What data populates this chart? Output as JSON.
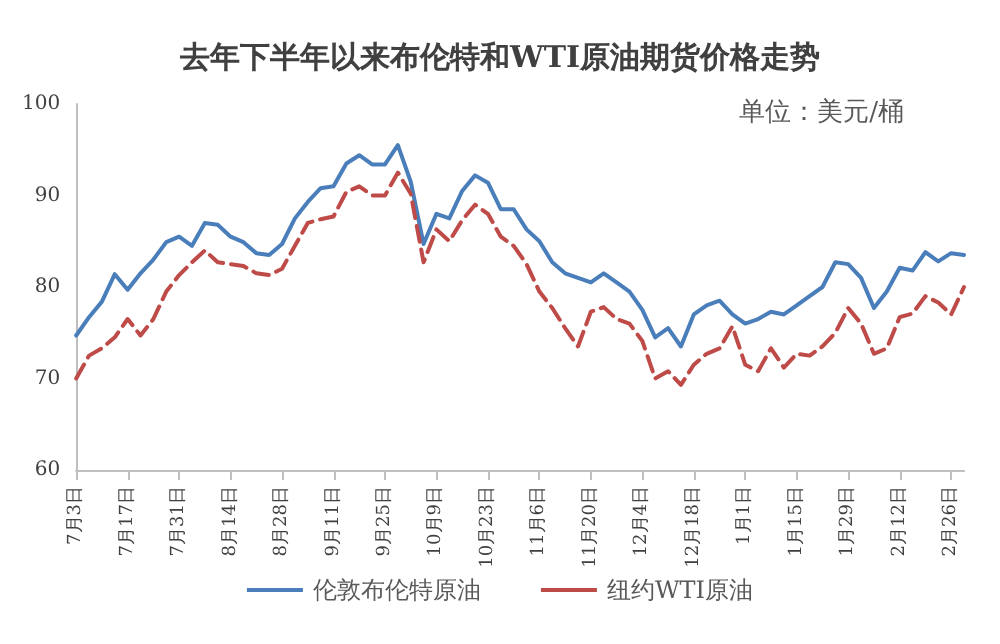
{
  "chart_data": {
    "type": "line",
    "title": "去年下半年以来布伦特和WTI原油期货价格走势",
    "annotations": [
      "单位：美元/桶"
    ],
    "categories": [
      "7月3日",
      null,
      null,
      null,
      "7月17日",
      null,
      null,
      null,
      "7月31日",
      null,
      null,
      null,
      "8月14日",
      null,
      null,
      null,
      "8月28日",
      null,
      null,
      null,
      "9月11日",
      null,
      null,
      null,
      "9月25日",
      null,
      null,
      null,
      "10月9日",
      null,
      null,
      null,
      "10月23日",
      null,
      null,
      null,
      "11月6日",
      null,
      null,
      null,
      "11月20日",
      null,
      null,
      null,
      "12月4日",
      null,
      null,
      null,
      "12月18日",
      null,
      null,
      null,
      "1月1日",
      null,
      null,
      null,
      "1月15日",
      null,
      null,
      null,
      "1月29日",
      null,
      null,
      null,
      "2月12日",
      null,
      null,
      null,
      "2月26日",
      null
    ],
    "series": [
      {
        "name": "伦敦布伦特原油",
        "color": "#4a7ebb",
        "line_style": "solid",
        "values": [
          74.7,
          76.7,
          78.4,
          81.4,
          79.7,
          81.5,
          83,
          84.9,
          85.5,
          84.5,
          87,
          86.8,
          85.5,
          84.9,
          83.7,
          83.5,
          84.7,
          87.5,
          89.3,
          90.8,
          91,
          93.5,
          94.4,
          93.4,
          93.4,
          95.5,
          91.5,
          84.7,
          88,
          87.5,
          90.5,
          92.2,
          91.4,
          88.5,
          88.5,
          86.3,
          85,
          82.7,
          81.5,
          81,
          80.5,
          81.5,
          80.5,
          79.5,
          77.5,
          74.5,
          75.5,
          73.5,
          77,
          78,
          78.5,
          77,
          76,
          76.5,
          77.3,
          77,
          78,
          79,
          80,
          82.7,
          82.5,
          81,
          77.7,
          79.5,
          82.1,
          81.8,
          83.8,
          82.8,
          83.7,
          83.5
        ]
      },
      {
        "name": "纽约WTI原油",
        "color": "#be4b48",
        "line_style": "dashed",
        "values": [
          70,
          72.5,
          73.3,
          74.5,
          76.5,
          74.7,
          76.5,
          79.5,
          81.3,
          82.7,
          84,
          82.7,
          82.5,
          82.3,
          81.5,
          81.3,
          82,
          84.5,
          87,
          87.4,
          87.7,
          90.4,
          91,
          90,
          90,
          92.5,
          90.2,
          82.7,
          86.3,
          85,
          87.3,
          89,
          88,
          85.5,
          84.5,
          82.5,
          79.5,
          77.7,
          75.5,
          73.5,
          77.3,
          77.8,
          76.5,
          76,
          74.1,
          70,
          70.8,
          69.3,
          71.5,
          72.7,
          73.3,
          75.7,
          71.5,
          70.8,
          73.3,
          71.2,
          72.7,
          72.5,
          73.5,
          75,
          77.7,
          76,
          72.7,
          73.3,
          76.7,
          77.1,
          79,
          78.3,
          77,
          80
        ]
      }
    ],
    "ylim": [
      60,
      100
    ],
    "yticks": [
      60,
      70,
      80,
      90,
      100
    ],
    "grid": false,
    "legend": "bottom",
    "marker": "none"
  }
}
